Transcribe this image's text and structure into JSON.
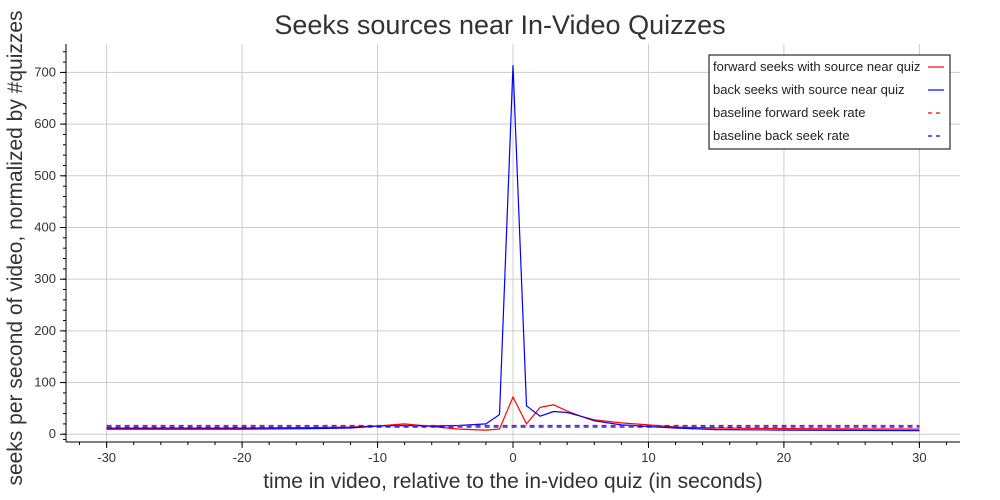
{
  "chart_data": {
    "type": "line",
    "title": "Seeks sources near In-Video Quizzes",
    "xlabel": "time in video, relative to the in-video quiz (in seconds)",
    "ylabel": "seeks per second of video, normalized by #quizzes",
    "xlim": [
      -33,
      33
    ],
    "ylim": [
      -15,
      755
    ],
    "x_ticks": [
      -30,
      -20,
      -10,
      0,
      10,
      20,
      30
    ],
    "x_tick_labels": [
      "-30",
      "-20",
      "-10",
      "0",
      "10",
      "20",
      "30"
    ],
    "y_ticks": [
      0,
      100,
      200,
      300,
      400,
      500,
      600,
      700
    ],
    "y_tick_labels": [
      "0",
      "100",
      "200",
      "300",
      "400",
      "500",
      "600",
      "700"
    ],
    "grid": true,
    "legend_position": "top-right",
    "series": [
      {
        "name": "forward seeks with source near quiz",
        "color": "#ff0000",
        "dash": "solid",
        "x": [
          -30,
          -20,
          -15,
          -12,
          -10,
          -8,
          -6,
          -4,
          -2,
          -1,
          0,
          1,
          2,
          3,
          4,
          5,
          6,
          8,
          10,
          12,
          15,
          20,
          30
        ],
        "y": [
          12,
          12,
          13,
          14,
          16,
          20,
          15,
          10,
          8,
          10,
          72,
          20,
          52,
          57,
          45,
          35,
          28,
          22,
          18,
          14,
          12,
          11,
          10
        ]
      },
      {
        "name": "back seeks with source near quiz",
        "color": "#0000ff",
        "dash": "solid",
        "x": [
          -30,
          -20,
          -15,
          -12,
          -10,
          -8,
          -6,
          -4,
          -2,
          -1,
          0,
          1,
          2,
          3,
          4,
          5,
          6,
          8,
          10,
          12,
          15,
          20,
          30
        ],
        "y": [
          10,
          10,
          11,
          12,
          16,
          17,
          16,
          17,
          20,
          38,
          714,
          55,
          35,
          44,
          42,
          35,
          26,
          18,
          15,
          12,
          9,
          8,
          7
        ]
      },
      {
        "name": "baseline forward seek rate",
        "color": "#ff0000",
        "dash": "dashed",
        "x": [
          -30,
          30
        ],
        "y": [
          17,
          17
        ]
      },
      {
        "name": "baseline back seek rate",
        "color": "#0000ff",
        "dash": "dashed",
        "x": [
          -30,
          30
        ],
        "y": [
          14,
          14
        ]
      }
    ]
  }
}
